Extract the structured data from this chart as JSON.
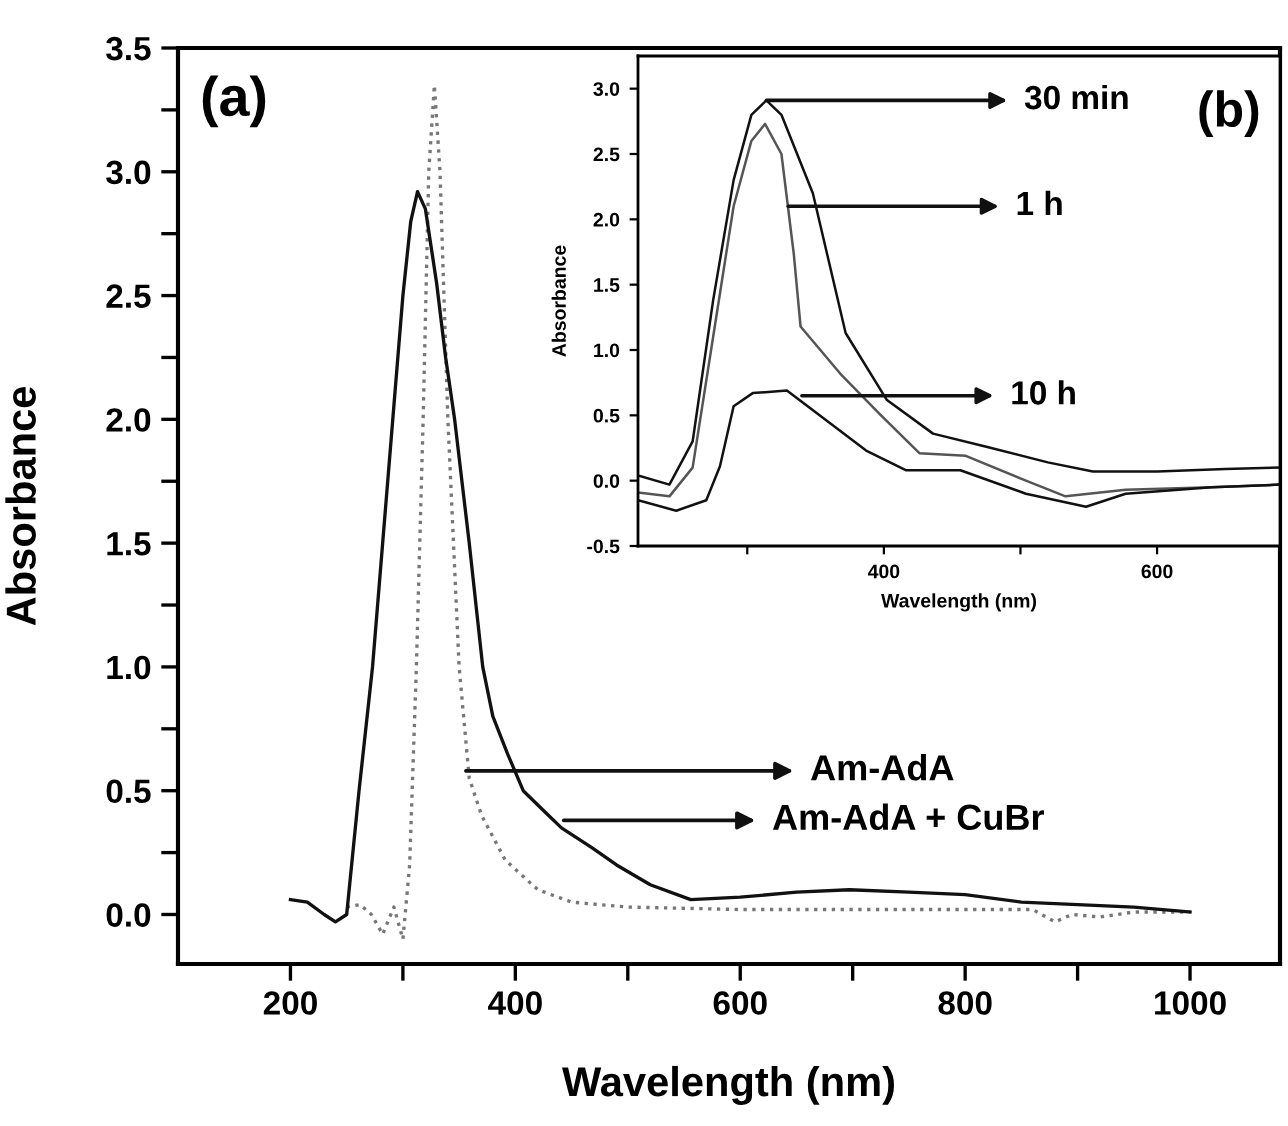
{
  "chart_data": [
    {
      "type": "line",
      "title": "(a)",
      "xlabel": "Wavelength (nm)",
      "ylabel": "Absorbance",
      "xlim": [
        100,
        1080
      ],
      "ylim": [
        -0.2,
        3.5
      ],
      "xticks": [
        200,
        {
          "value": 300,
          "label": null
        },
        400,
        {
          "value": 500,
          "label": null
        },
        600,
        {
          "value": 700,
          "label": null
        },
        800,
        {
          "value": 900,
          "label": null
        },
        1000
      ],
      "yticks": [
        {
          "value": 0,
          "label": "0.0"
        },
        {
          "value": 0.25,
          "label": null
        },
        0.5,
        {
          "value": 0.75,
          "label": null
        },
        {
          "value": 1,
          "label": "1.0"
        },
        {
          "value": 1.25,
          "label": null
        },
        1.5,
        {
          "value": 1.75,
          "label": null
        },
        {
          "value": 2,
          "label": "2.0"
        },
        {
          "value": 2.25,
          "label": null
        },
        2.5,
        {
          "value": 2.75,
          "label": null
        },
        {
          "value": 3,
          "label": "3.0"
        },
        {
          "value": 3.25,
          "label": null
        },
        3.5
      ],
      "series": [
        {
          "color": "#777777",
          "line_style": "dotted",
          "x": [
            250,
            262,
            272,
            282,
            292,
            300,
            306,
            312,
            318,
            323,
            328,
            333,
            340,
            350,
            359,
            370,
            391,
            420,
            450,
            500,
            600,
            700,
            800,
            860,
            880,
            895,
            920,
            950,
            1000
          ],
          "values": [
            0.03,
            0.04,
            0.0,
            -0.08,
            0.03,
            -0.1,
            0.2,
            1.0,
            2.0,
            3.0,
            3.35,
            3.0,
            2.0,
            1.0,
            0.55,
            0.4,
            0.22,
            0.1,
            0.05,
            0.03,
            0.02,
            0.02,
            0.02,
            0.02,
            -0.03,
            0.0,
            -0.01,
            0.01,
            0.01
          ]
        },
        {
          "color": "#111111",
          "line_style": "solid",
          "x": [
            200,
            215,
            230,
            240,
            250,
            261,
            273,
            282,
            291,
            300,
            307,
            313,
            320,
            330,
            338,
            346,
            359,
            371,
            380,
            393,
            407,
            425,
            441,
            468,
            490,
            520,
            556,
            600,
            650,
            697,
            750,
            800,
            850,
            900,
            950,
            1000
          ],
          "values": [
            0.06,
            0.05,
            0.0,
            -0.03,
            0.0,
            0.5,
            1.0,
            1.5,
            2.0,
            2.5,
            2.8,
            2.92,
            2.85,
            2.55,
            2.25,
            2.0,
            1.5,
            1.0,
            0.8,
            0.65,
            0.5,
            0.42,
            0.35,
            0.27,
            0.2,
            0.12,
            0.06,
            0.07,
            0.09,
            0.1,
            0.09,
            0.08,
            0.05,
            0.04,
            0.03,
            0.01
          ]
        }
      ],
      "annotations": [
        {
          "text": "Am-AdA",
          "x": 356,
          "y": 0.58
        },
        {
          "text": "Am-AdA + CuBr",
          "x": 443,
          "y": 0.38
        }
      ]
    },
    {
      "type": "line",
      "title": "(b)",
      "xlabel": "Wavelength (nm)",
      "ylabel": "Absorbance",
      "xlim": [
        220,
        690
      ],
      "ylim": [
        -0.5,
        3.25
      ],
      "xticks": [
        {
          "value": 300,
          "label": null
        },
        400,
        {
          "value": 500,
          "label": null
        },
        600
      ],
      "yticks": [
        -0.5,
        {
          "value": 0,
          "label": "0.0"
        },
        0.5,
        {
          "value": 1,
          "label": "1.0"
        },
        1.5,
        {
          "value": 2,
          "label": "2.0"
        },
        2.5,
        {
          "value": 3,
          "label": "3.0"
        }
      ],
      "series": [
        {
          "color": "#111111",
          "line_style": "solid",
          "x": [
            220,
            243,
            260,
            275,
            290,
            303,
            314,
            325,
            348,
            372,
            402,
            436,
            475,
            520,
            553,
            600,
            650,
            690
          ],
          "values": [
            0.04,
            -0.03,
            0.3,
            1.38,
            2.3,
            2.8,
            2.91,
            2.8,
            2.2,
            1.13,
            0.62,
            0.36,
            0.26,
            0.14,
            0.07,
            0.07,
            0.09,
            0.1
          ]
        },
        {
          "color": "#555555",
          "line_style": "solid",
          "x": [
            220,
            243,
            260,
            275,
            290,
            303,
            313,
            325,
            334,
            339,
            368,
            397,
            426,
            460,
            504,
            533,
            577,
            640,
            690
          ],
          "values": [
            -0.09,
            -0.12,
            0.1,
            1.1,
            2.1,
            2.6,
            2.73,
            2.5,
            1.74,
            1.18,
            0.82,
            0.51,
            0.21,
            0.19,
            0.0,
            -0.12,
            -0.07,
            -0.05,
            -0.03
          ]
        },
        {
          "color": "#111111",
          "line_style": "solid",
          "x": [
            220,
            248,
            270,
            280,
            290,
            304,
            329,
            358,
            387,
            416,
            456,
            504,
            548,
            577,
            640,
            690
          ],
          "values": [
            -0.15,
            -0.23,
            -0.15,
            0.11,
            0.57,
            0.67,
            0.69,
            0.46,
            0.23,
            0.08,
            0.08,
            -0.1,
            -0.2,
            -0.1,
            -0.05,
            -0.03
          ]
        }
      ],
      "annotations": [
        {
          "text": "30 min",
          "x": 314,
          "y": 2.91
        },
        {
          "text": "1 h",
          "x": 330,
          "y": 2.1
        },
        {
          "text": "10 h",
          "x": 340,
          "y": 0.65
        }
      ]
    }
  ]
}
